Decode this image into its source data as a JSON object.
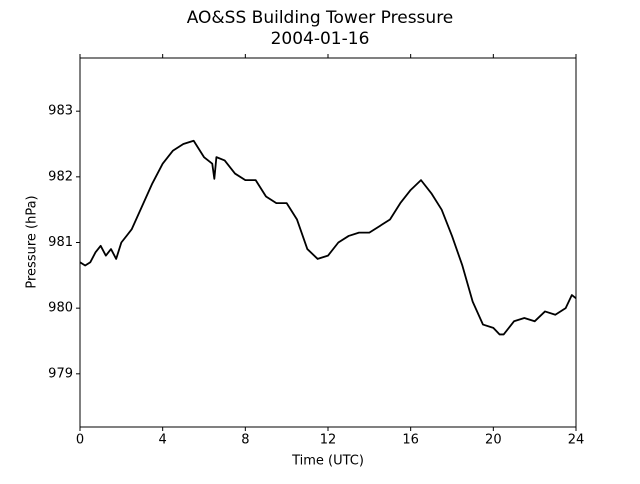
{
  "chart_data": {
    "type": "line",
    "title": "AO&SS Building Tower Pressure",
    "subtitle": "2004-01-16",
    "x_label": "Time (UTC)",
    "y_label": "Pressure (hPa)",
    "x": [
      0,
      0.25,
      0.5,
      0.75,
      1.0,
      1.25,
      1.5,
      1.75,
      2.0,
      2.5,
      3.0,
      3.5,
      4.0,
      4.5,
      5.0,
      5.5,
      6.0,
      6.4,
      6.5,
      6.6,
      7.0,
      7.5,
      8.0,
      8.5,
      9.0,
      9.5,
      10.0,
      10.5,
      11.0,
      11.5,
      12.0,
      12.5,
      13.0,
      13.5,
      14.0,
      14.5,
      15.0,
      15.5,
      16.0,
      16.5,
      17.0,
      17.5,
      18.0,
      18.5,
      19.0,
      19.5,
      20.0,
      20.3,
      20.5,
      21.0,
      21.5,
      22.0,
      22.5,
      23.0,
      23.5,
      23.8,
      24.0
    ],
    "series": [
      {
        "color": "#000000",
        "values": [
          980.7,
          980.65,
          980.7,
          980.85,
          980.95,
          980.8,
          980.9,
          980.75,
          981.0,
          981.2,
          981.55,
          981.9,
          982.2,
          982.4,
          982.5,
          982.55,
          982.3,
          982.2,
          981.97,
          982.3,
          982.25,
          982.05,
          981.95,
          981.95,
          981.7,
          981.6,
          981.6,
          981.35,
          980.9,
          980.75,
          980.8,
          981.0,
          981.1,
          981.15,
          981.15,
          981.25,
          981.35,
          981.6,
          981.8,
          981.95,
          981.75,
          981.5,
          981.1,
          980.65,
          980.1,
          979.75,
          979.7,
          979.6,
          979.6,
          979.8,
          979.85,
          979.8,
          979.95,
          979.9,
          980.0,
          980.2,
          980.15
        ]
      }
    ],
    "xlim": [
      0,
      24
    ],
    "xticks": [
      0,
      4,
      8,
      12,
      16,
      20,
      24
    ],
    "ylim": [
      978.19,
      983.81
    ],
    "yticks": [
      979,
      980,
      981,
      982,
      983
    ],
    "grid": false
  }
}
